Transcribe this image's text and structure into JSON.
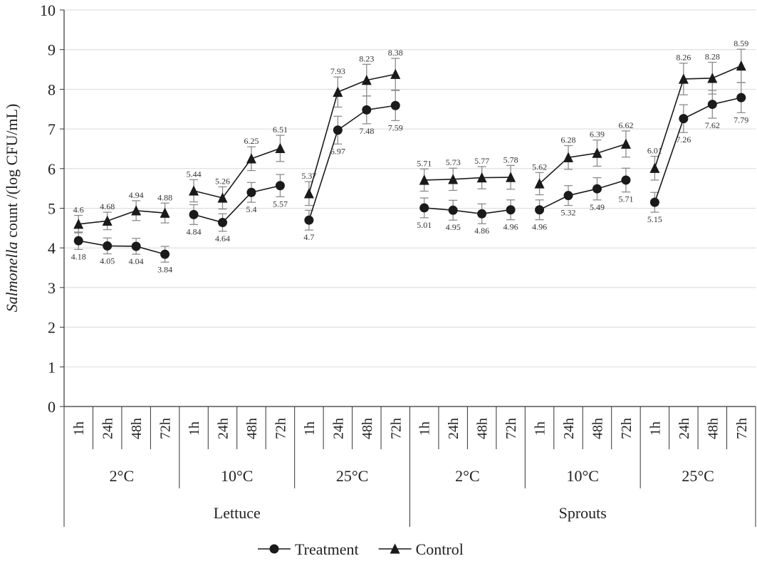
{
  "chart_data": {
    "type": "line",
    "ylabel_italic": "Salmonella",
    "ylabel_rest": " count /(log CFU/mL)",
    "ylim": [
      0,
      10
    ],
    "yticks": [
      0,
      1,
      2,
      3,
      4,
      5,
      6,
      7,
      8,
      9,
      10
    ],
    "grid": true,
    "categories": [
      "1h",
      "24h",
      "48h",
      "72h",
      "1h",
      "24h",
      "48h",
      "72h",
      "1h",
      "24h",
      "48h",
      "72h",
      "1h",
      "24h",
      "48h",
      "72h",
      "1h",
      "24h",
      "48h",
      "72h",
      "1h",
      "24h",
      "48h",
      "72h"
    ],
    "temperature_groups": [
      "2°C",
      "10°C",
      "25°C",
      "2°C",
      "10°C",
      "25°C"
    ],
    "produce_groups": [
      "Lettuce",
      "Sprouts"
    ],
    "legend_position": "bottom",
    "series": [
      {
        "name": "Treatment",
        "marker": "circle",
        "values": [
          4.18,
          4.05,
          4.04,
          3.84,
          4.84,
          4.64,
          5.4,
          5.57,
          4.7,
          6.97,
          7.48,
          7.59,
          5.01,
          4.95,
          4.86,
          4.96,
          4.96,
          5.32,
          5.49,
          5.71,
          5.15,
          7.26,
          7.62,
          7.79
        ],
        "labels": [
          "4.18",
          "4.05",
          "4.04",
          "3.84",
          "4.84",
          "4.64",
          "5.4",
          "5.57",
          "4.7",
          "6.97",
          "7.48",
          "7.59",
          "5.01",
          "4.95",
          "4.86",
          "4.96",
          "4.96",
          "5.32",
          "5.49",
          "5.71",
          "5.15",
          "7.26",
          "7.62",
          "7.79"
        ],
        "errors": [
          0.22,
          0.2,
          0.2,
          0.2,
          0.25,
          0.22,
          0.25,
          0.28,
          0.25,
          0.35,
          0.35,
          0.38,
          0.25,
          0.25,
          0.25,
          0.25,
          0.25,
          0.25,
          0.28,
          0.3,
          0.25,
          0.35,
          0.35,
          0.38
        ]
      },
      {
        "name": "Control",
        "marker": "triangle",
        "values": [
          4.6,
          4.68,
          4.94,
          4.88,
          5.44,
          5.26,
          6.25,
          6.51,
          5.37,
          7.93,
          8.23,
          8.38,
          5.71,
          5.73,
          5.77,
          5.78,
          5.62,
          6.28,
          6.39,
          6.62,
          6.01,
          8.26,
          8.28,
          8.59
        ],
        "labels": [
          "4.6",
          "4.68",
          "4.94",
          "4.88",
          "5.44",
          "5.26",
          "6.25",
          "6.51",
          "5.37",
          "7.93",
          "8.23",
          "8.38",
          "5.71",
          "5.73",
          "5.77",
          "5.78",
          "5.62",
          "6.28",
          "6.39",
          "6.62",
          "6.01",
          "8.26",
          "8.28",
          "8.59"
        ],
        "errors": [
          0.22,
          0.22,
          0.25,
          0.25,
          0.28,
          0.28,
          0.3,
          0.33,
          0.3,
          0.38,
          0.4,
          0.4,
          0.28,
          0.28,
          0.28,
          0.3,
          0.28,
          0.3,
          0.33,
          0.33,
          0.3,
          0.4,
          0.4,
          0.42
        ]
      }
    ]
  }
}
